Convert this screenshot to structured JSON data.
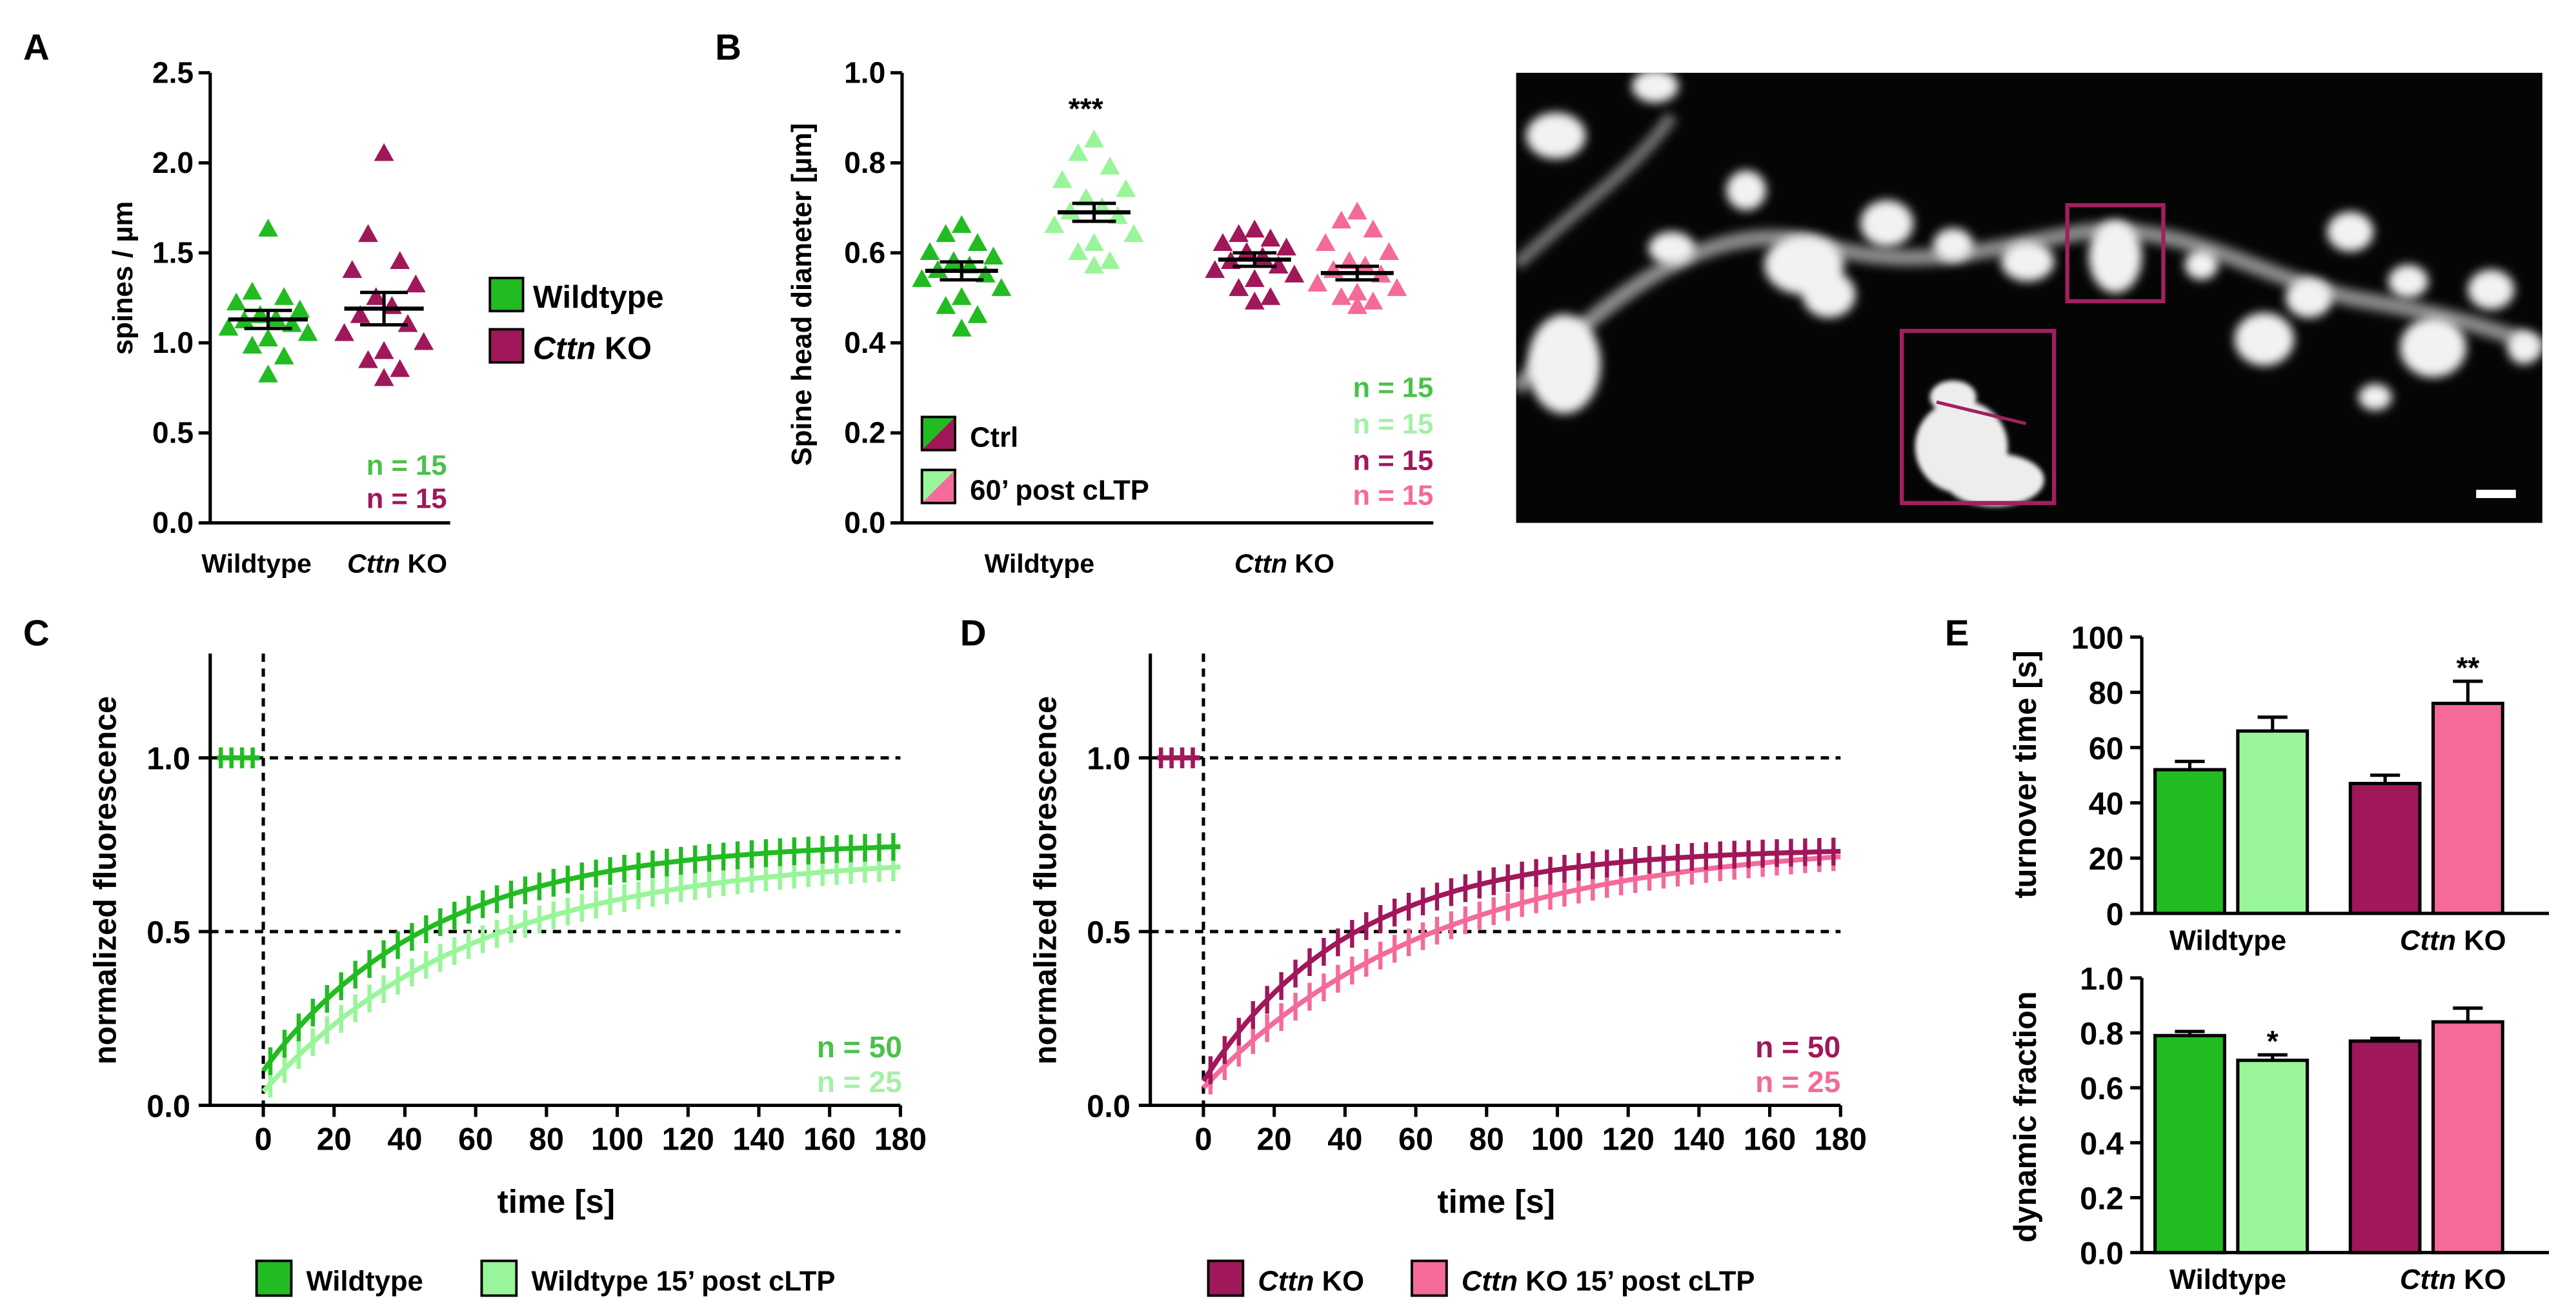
{
  "colors": {
    "wt": "#22bb22",
    "wt_light": "#99f599",
    "wt_light_text": "#a6f0a6",
    "wt_n": "#4cc04c",
    "ko": "#a0175a",
    "ko_light": "#f46a9a",
    "ko_n": "#a0175a",
    "axis": "#000000",
    "image_bg": "#050505",
    "box": "#a02060"
  },
  "scale_multiplier": 2.565,
  "panelA": {
    "letter": "A",
    "ylabel": "spines / µm",
    "yticks": [
      "0.0",
      "0.5",
      "1.0",
      "1.5",
      "2.0",
      "2.5"
    ],
    "xlabels": [
      {
        "text": "Wildtype",
        "italic": "",
        "rest": ""
      },
      {
        "text": "",
        "italic": "Cttn",
        "rest": " KO"
      }
    ],
    "legend": [
      {
        "label": "Wildtype",
        "italic": "",
        "rest": ""
      },
      {
        "label": "",
        "italic": "Cttn",
        "rest": " KO"
      }
    ],
    "n_labels": [
      "n = 15",
      "n = 15"
    ]
  },
  "panelB": {
    "letter": "B",
    "ylabel": "Spine head diameter [µm]",
    "yticks": [
      "0.0",
      "0.2",
      "0.4",
      "0.6",
      "0.8",
      "1.0"
    ],
    "xlabels": [
      {
        "text": "Wildtype",
        "italic": "",
        "rest": ""
      },
      {
        "text": "",
        "italic": "Cttn",
        "rest": " KO"
      }
    ],
    "significance": "***",
    "legend": [
      "Ctrl",
      "60’ post cLTP"
    ],
    "n_labels": [
      "n = 15",
      "n = 15",
      "n = 15",
      "n = 15"
    ]
  },
  "panelC": {
    "letter": "C",
    "ylabel": "normalized fluorescence",
    "xlabel": "time [s]",
    "xticks": [
      "0",
      "20",
      "40",
      "60",
      "80",
      "100",
      "120",
      "140",
      "160",
      "180"
    ],
    "yticks": [
      "0.0",
      "0.5",
      "1.0"
    ],
    "n_labels": [
      "n = 50",
      "n = 25"
    ],
    "legend": [
      {
        "italic": "",
        "text": "Wildtype"
      },
      {
        "italic": "",
        "text": "Wildtype 15’ post cLTP"
      }
    ]
  },
  "panelD": {
    "letter": "D",
    "ylabel": "normalized fluorescence",
    "xlabel": "time [s]",
    "xticks": [
      "0",
      "20",
      "40",
      "60",
      "80",
      "100",
      "120",
      "140",
      "160",
      "180"
    ],
    "yticks": [
      "0.0",
      "0.5",
      "1.0"
    ],
    "n_labels": [
      "n = 50",
      "n = 25"
    ],
    "legend": [
      {
        "italic": "Cttn",
        "text": " KO"
      },
      {
        "italic": "Cttn",
        "text": " KO 15’ post cLTP"
      }
    ]
  },
  "panelE": {
    "letter": "E",
    "top_ylabel": "turnover time [s]",
    "top_yticks": [
      "0",
      "20",
      "40",
      "60",
      "80",
      "100"
    ],
    "top_sig": "**",
    "bottom_ylabel": "dynamic fraction",
    "bottom_yticks": [
      "0.0",
      "0.2",
      "0.4",
      "0.6",
      "0.8",
      "1.0"
    ],
    "bottom_sig": "*",
    "xlabels": [
      {
        "text": "Wildtype",
        "italic": "",
        "rest": ""
      },
      {
        "text": "",
        "italic": "Cttn",
        "rest": " KO"
      }
    ]
  },
  "chart_data": [
    {
      "id": "A",
      "type": "scatter",
      "title": "",
      "xlabel": "",
      "ylabel": "spines / µm",
      "ylim": [
        0,
        2.5
      ],
      "categories": [
        "Wildtype",
        "Cttn KO"
      ],
      "series": [
        {
          "name": "Wildtype",
          "color": "#22bb22",
          "mean": 1.13,
          "sem": 0.05,
          "points": [
            1.63,
            1.28,
            1.25,
            1.22,
            1.18,
            1.15,
            1.13,
            1.12,
            1.1,
            1.08,
            1.05,
            1.02,
            0.98,
            0.92,
            0.82
          ]
        },
        {
          "name": "Cttn KO",
          "color": "#a0175a",
          "mean": 1.19,
          "sem": 0.09,
          "points": [
            2.05,
            1.6,
            1.45,
            1.4,
            1.32,
            1.25,
            1.2,
            1.15,
            1.1,
            1.05,
            1.0,
            0.95,
            0.9,
            0.85,
            0.8
          ]
        }
      ],
      "n": [
        15,
        15
      ]
    },
    {
      "id": "B",
      "type": "scatter",
      "title": "",
      "xlabel": "",
      "ylabel": "Spine head diameter [µm]",
      "ylim": [
        0,
        1.0
      ],
      "categories": [
        "Wildtype",
        "Cttn KO"
      ],
      "series": [
        {
          "name": "Wildtype Ctrl",
          "group": 0,
          "color": "#22bb22",
          "mean": 0.56,
          "sem": 0.02,
          "points": [
            0.66,
            0.64,
            0.62,
            0.6,
            0.59,
            0.58,
            0.57,
            0.56,
            0.55,
            0.54,
            0.52,
            0.5,
            0.48,
            0.46,
            0.43
          ]
        },
        {
          "name": "Wildtype 60’ post cLTP",
          "group": 0,
          "color": "#99f599",
          "mean": 0.69,
          "sem": 0.02,
          "points": [
            0.85,
            0.82,
            0.79,
            0.76,
            0.74,
            0.72,
            0.7,
            0.69,
            0.68,
            0.66,
            0.64,
            0.62,
            0.6,
            0.58,
            0.57
          ]
        },
        {
          "name": "Cttn KO Ctrl",
          "group": 1,
          "color": "#a0175a",
          "mean": 0.585,
          "sem": 0.015,
          "points": [
            0.65,
            0.64,
            0.63,
            0.62,
            0.61,
            0.6,
            0.59,
            0.58,
            0.57,
            0.56,
            0.55,
            0.54,
            0.52,
            0.5,
            0.49
          ]
        },
        {
          "name": "Cttn KO 60’ post cLTP",
          "group": 1,
          "color": "#f46a9a",
          "mean": 0.555,
          "sem": 0.015,
          "points": [
            0.69,
            0.67,
            0.65,
            0.62,
            0.6,
            0.58,
            0.57,
            0.56,
            0.55,
            0.53,
            0.52,
            0.51,
            0.5,
            0.49,
            0.48
          ]
        }
      ],
      "n": [
        15,
        15,
        15,
        15
      ]
    },
    {
      "id": "C",
      "type": "line",
      "title": "",
      "xlabel": "time [s]",
      "ylabel": "normalized fluorescence",
      "xlim": [
        -15,
        180
      ],
      "ylim": [
        0,
        1.3
      ],
      "reference_lines_y": [
        0.5,
        1.0
      ],
      "reference_line_x": 0,
      "series": [
        {
          "name": "Wildtype",
          "color": "#22bb22",
          "plateau": 0.76,
          "tau": 48,
          "start": 0.1,
          "err": 0.04
        },
        {
          "name": "Wildtype 15’ post cLTP",
          "color": "#99f599",
          "plateau": 0.72,
          "tau": 60,
          "start": 0.04,
          "err": 0.04
        }
      ],
      "prebleach": 1.0,
      "n": [
        50,
        25
      ]
    },
    {
      "id": "D",
      "type": "line",
      "title": "",
      "xlabel": "time [s]",
      "ylabel": "normalized fluorescence",
      "xlim": [
        -15,
        180
      ],
      "ylim": [
        0,
        1.3
      ],
      "reference_lines_y": [
        0.5,
        1.0
      ],
      "reference_line_x": 0,
      "series": [
        {
          "name": "Cttn KO",
          "color": "#a0175a",
          "plateau": 0.74,
          "tau": 42,
          "start": 0.07,
          "err": 0.04
        },
        {
          "name": "Cttn KO 15’ post cLTP",
          "color": "#f46a9a",
          "plateau": 0.76,
          "tau": 65,
          "start": 0.05,
          "err": 0.04
        }
      ],
      "prebleach": 1.0,
      "n": [
        50,
        25
      ]
    },
    {
      "id": "E-top",
      "type": "bar",
      "title": "",
      "xlabel": "",
      "ylabel": "turnover time [s]",
      "ylim": [
        0,
        100
      ],
      "categories": [
        "Wildtype",
        "Cttn KO"
      ],
      "series": [
        {
          "name": "Wildtype",
          "values": [
            52,
            66
          ],
          "errors": [
            3,
            5
          ],
          "colors": [
            "#22bb22",
            "#99f599"
          ]
        },
        {
          "name": "Cttn KO",
          "values": [
            47,
            76
          ],
          "errors": [
            3,
            8
          ],
          "colors": [
            "#a0175a",
            "#f46a9a"
          ]
        }
      ]
    },
    {
      "id": "E-bottom",
      "type": "bar",
      "title": "",
      "xlabel": "",
      "ylabel": "dynamic fraction",
      "ylim": [
        0,
        1.0
      ],
      "categories": [
        "Wildtype",
        "Cttn KO"
      ],
      "series": [
        {
          "name": "Wildtype",
          "values": [
            0.79,
            0.7
          ],
          "errors": [
            0.015,
            0.02
          ],
          "colors": [
            "#22bb22",
            "#99f599"
          ]
        },
        {
          "name": "Cttn KO",
          "values": [
            0.77,
            0.84
          ],
          "errors": [
            0.01,
            0.05
          ],
          "colors": [
            "#a0175a",
            "#f46a9a"
          ]
        }
      ]
    }
  ]
}
